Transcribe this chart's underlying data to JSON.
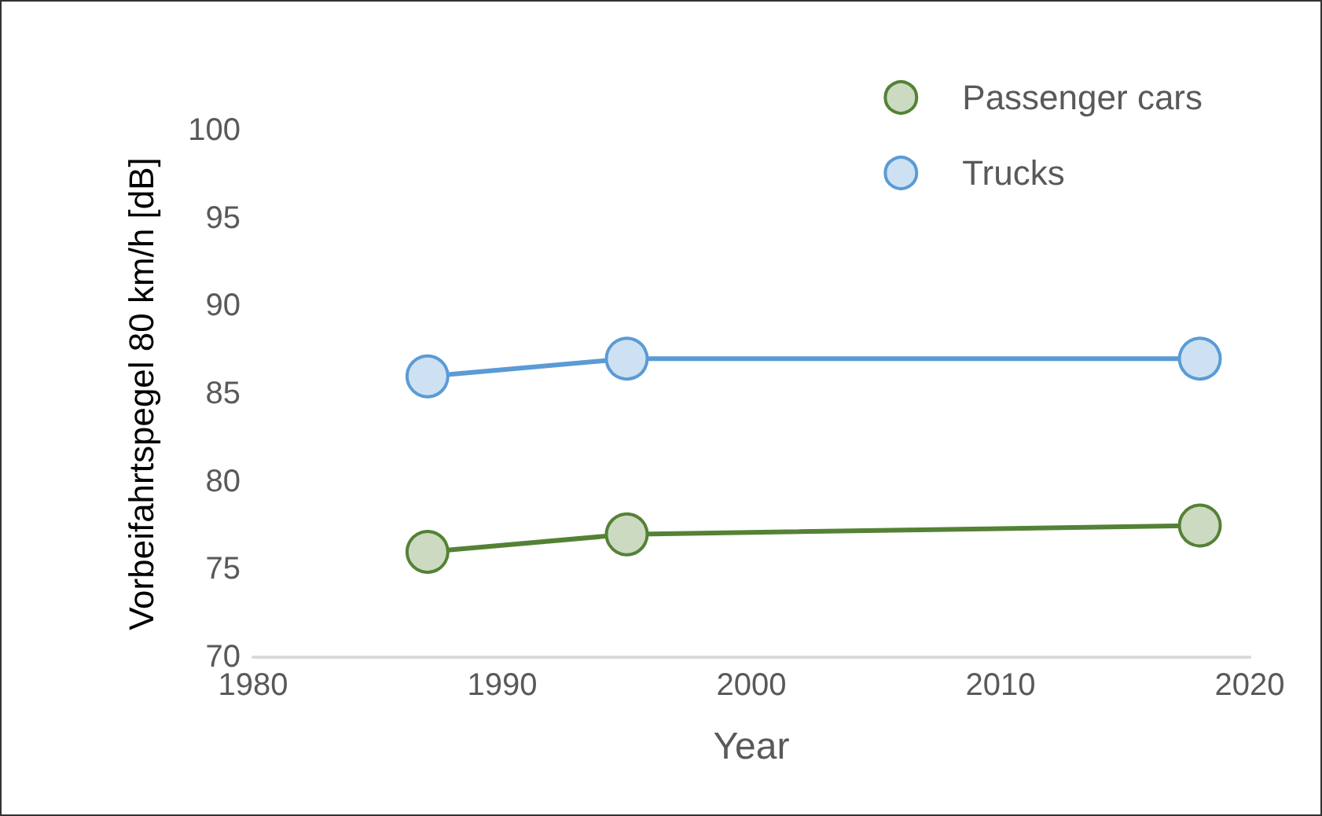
{
  "chart_data": {
    "type": "line",
    "xlabel": "Year",
    "ylabel": "Vorbeifahrtspegel 80 km/h [dB]",
    "series": [
      {
        "name": "Passenger cars",
        "color": "#548235",
        "x": [
          1987,
          1995,
          2018
        ],
        "values": [
          76,
          77,
          77.5
        ]
      },
      {
        "name": "Trucks",
        "color": "#5b9bd5",
        "x": [
          1987,
          1995,
          2018
        ],
        "values": [
          86,
          87,
          87
        ]
      }
    ],
    "xlim": [
      1980,
      2020
    ],
    "xticks": [
      1980,
      1990,
      2000,
      2010,
      2020
    ],
    "ylim": [
      70,
      100
    ],
    "yticks": [
      70,
      75,
      80,
      85,
      90,
      95,
      100
    ],
    "grid": false,
    "legend": "top right",
    "marker": "circle",
    "line_style": "solid"
  }
}
